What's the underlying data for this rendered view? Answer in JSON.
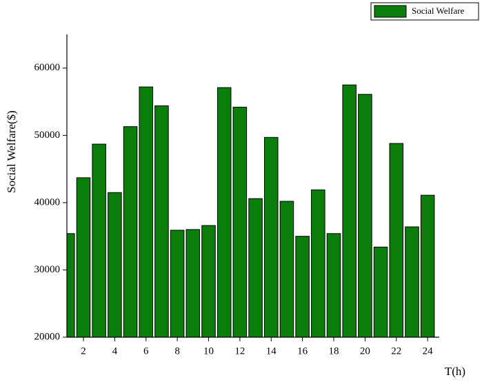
{
  "chart_data": {
    "type": "bar",
    "x_label": "T(h)",
    "y_label": "Social Welfare($)",
    "x": [
      1,
      2,
      3,
      4,
      5,
      6,
      7,
      8,
      9,
      10,
      11,
      12,
      13,
      14,
      15,
      16,
      17,
      18,
      19,
      20,
      21,
      22,
      23,
      24
    ],
    "series": [
      {
        "name": "Social Welfare",
        "color": "#0a7d0a",
        "values": [
          35400,
          43700,
          48700,
          41500,
          51300,
          57200,
          54400,
          35900,
          36000,
          36600,
          57100,
          54200,
          40600,
          49700,
          40200,
          35000,
          41900,
          35400,
          57500,
          56100,
          33400,
          48800,
          36400,
          41100
        ]
      }
    ],
    "xlim": [
      1,
      24.8
    ],
    "xticks": [
      2,
      4,
      6,
      8,
      10,
      12,
      14,
      16,
      18,
      20,
      22,
      24
    ],
    "ylim": [
      20000,
      65000
    ],
    "yticks": [
      20000,
      30000,
      40000,
      50000,
      60000
    ],
    "legend": "top-right"
  }
}
